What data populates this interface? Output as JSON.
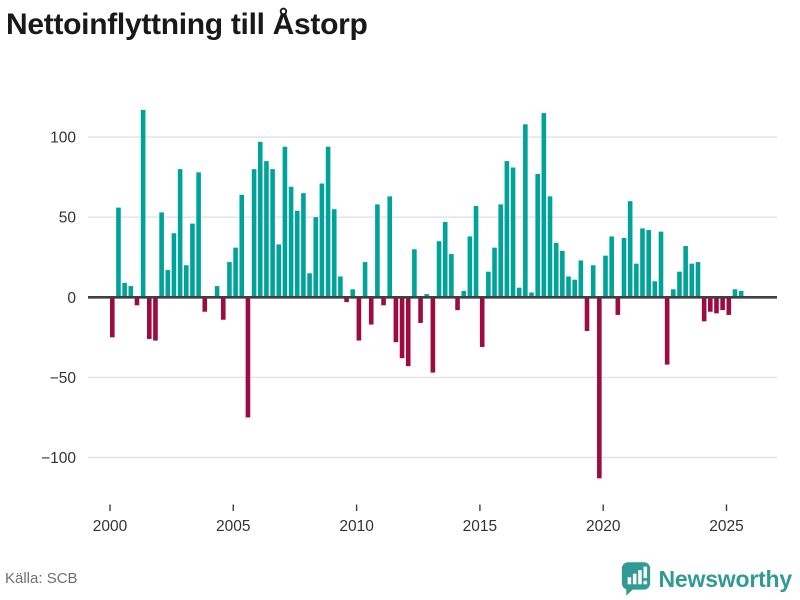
{
  "title": "Nettoinflyttning till Åstorp",
  "source": "Källa: SCB",
  "brand": {
    "name": "Newsworthy",
    "icon": "bar-chart-speech-bubble-icon"
  },
  "colors": {
    "positive": "#00a39a",
    "negative": "#9f0a41",
    "axis": "#3f3f3f",
    "grid": "#e2e2e2",
    "tick_text": "#333333",
    "title_text": "#191919",
    "muted_text": "#6d7078",
    "brand": "#2f9b94"
  },
  "chart_data": {
    "type": "bar",
    "title": "Nettoinflyttning till Åstorp",
    "xlabel": "",
    "ylabel": "",
    "grid": true,
    "legend": "none",
    "ylim": [
      -125,
      125
    ],
    "y_ticks": [
      100,
      50,
      0,
      -50,
      -100
    ],
    "y_tick_labels": [
      "100",
      "50",
      "0",
      "−50",
      "−100"
    ],
    "x_tick_labels": [
      "2000",
      "2005",
      "2010",
      "2015",
      "2020",
      "2025"
    ],
    "categories": [
      "2000Q1",
      "2000Q2",
      "2000Q3",
      "2000Q4",
      "2001Q1",
      "2001Q2",
      "2001Q3",
      "2001Q4",
      "2002Q1",
      "2002Q2",
      "2002Q3",
      "2002Q4",
      "2003Q1",
      "2003Q2",
      "2003Q3",
      "2003Q4",
      "2004Q1",
      "2004Q2",
      "2004Q3",
      "2004Q4",
      "2005Q1",
      "2005Q2",
      "2005Q3",
      "2005Q4",
      "2006Q1",
      "2006Q2",
      "2006Q3",
      "2006Q4",
      "2007Q1",
      "2007Q2",
      "2007Q3",
      "2007Q4",
      "2008Q1",
      "2008Q2",
      "2008Q3",
      "2008Q4",
      "2009Q1",
      "2009Q2",
      "2009Q3",
      "2009Q4",
      "2010Q1",
      "2010Q2",
      "2010Q3",
      "2010Q4",
      "2011Q1",
      "2011Q2",
      "2011Q3",
      "2011Q4",
      "2012Q1",
      "2012Q2",
      "2012Q3",
      "2012Q4",
      "2013Q1",
      "2013Q2",
      "2013Q3",
      "2013Q4",
      "2014Q1",
      "2014Q2",
      "2014Q3",
      "2014Q4",
      "2015Q1",
      "2015Q2",
      "2015Q3",
      "2015Q4",
      "2016Q1",
      "2016Q2",
      "2016Q3",
      "2016Q4",
      "2017Q1",
      "2017Q2",
      "2017Q3",
      "2017Q4",
      "2018Q1",
      "2018Q2",
      "2018Q3",
      "2018Q4",
      "2019Q1",
      "2019Q2",
      "2019Q3",
      "2019Q4",
      "2020Q1",
      "2020Q2",
      "2020Q3",
      "2020Q4",
      "2021Q1",
      "2021Q2",
      "2021Q3",
      "2021Q4",
      "2022Q1",
      "2022Q2",
      "2022Q3",
      "2022Q4",
      "2023Q1",
      "2023Q2",
      "2023Q3",
      "2023Q4",
      "2024Q1",
      "2024Q2",
      "2024Q3",
      "2024Q4",
      "2025Q1",
      "2025Q2",
      "2025Q3"
    ],
    "values": [
      -25,
      56,
      9,
      7,
      -5,
      117,
      -26,
      -27,
      53,
      17,
      40,
      80,
      20,
      46,
      78,
      -9,
      0,
      7,
      -14,
      22,
      31,
      64,
      -75,
      80,
      97,
      85,
      80,
      33,
      94,
      69,
      54,
      65,
      15,
      50,
      71,
      94,
      55,
      13,
      -3,
      5,
      -27,
      22,
      -17,
      58,
      -5,
      63,
      -28,
      -38,
      -43,
      30,
      -16,
      2,
      -47,
      35,
      47,
      27,
      -8,
      4,
      38,
      57,
      -31,
      16,
      31,
      58,
      85,
      81,
      6,
      108,
      3,
      77,
      115,
      63,
      34,
      29,
      13,
      11,
      23,
      -21,
      20,
      -113,
      26,
      38,
      -11,
      37,
      60,
      21,
      43,
      42,
      10,
      41,
      -42,
      5,
      16,
      32,
      21,
      22,
      -15,
      -9,
      -10,
      -8,
      -11,
      5,
      4
    ]
  }
}
